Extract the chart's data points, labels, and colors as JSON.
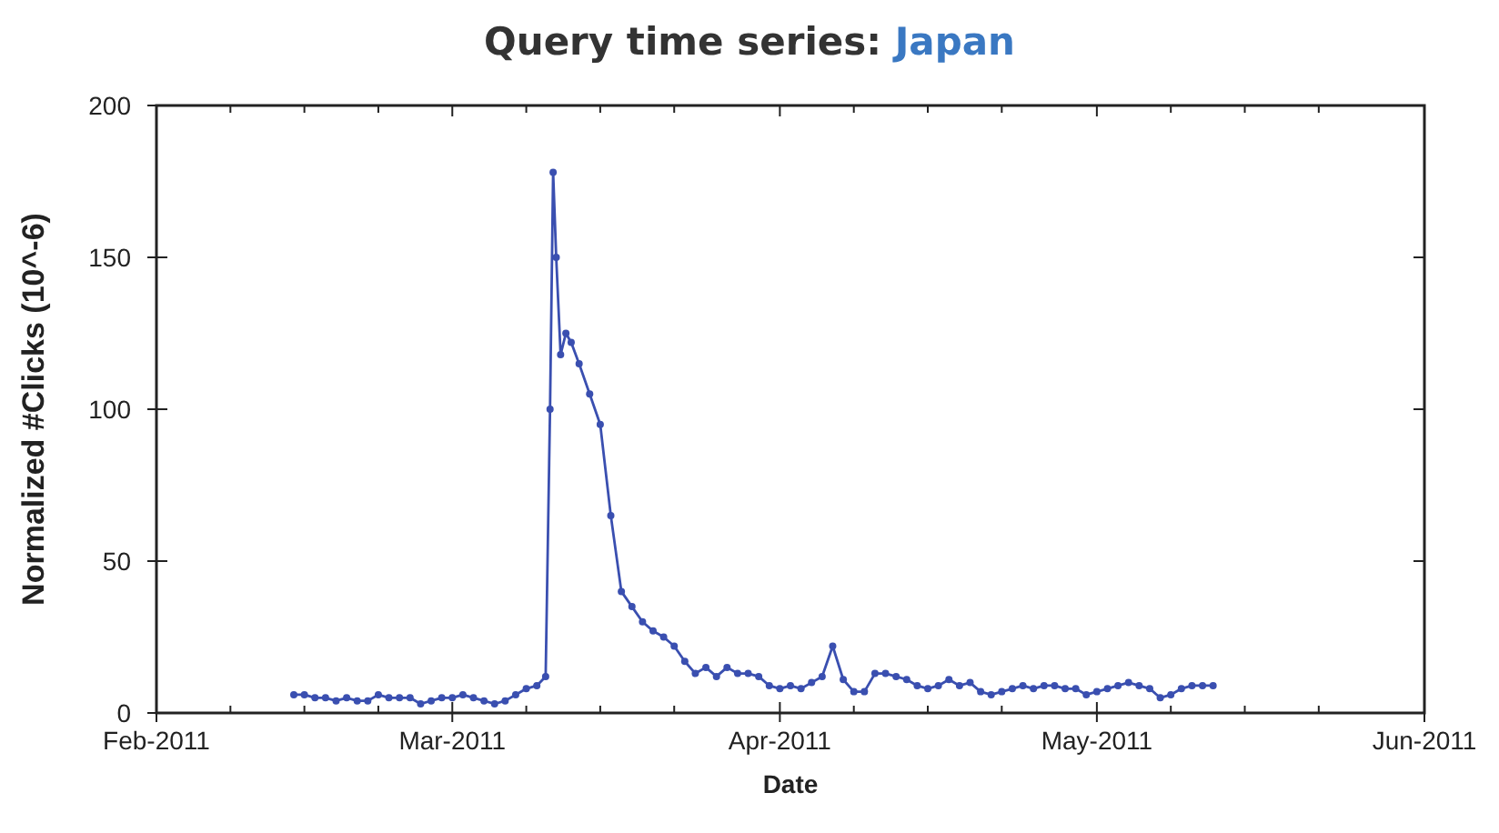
{
  "chart_data": {
    "type": "line",
    "title": "Query time series: Japan",
    "xlabel": "Date",
    "ylabel": "Normalized #Clicks (10^-6)",
    "x": [
      "2011-02-14",
      "2011-02-15",
      "2011-02-16",
      "2011-02-17",
      "2011-02-18",
      "2011-02-19",
      "2011-02-20",
      "2011-02-21",
      "2011-02-22",
      "2011-02-23",
      "2011-02-24",
      "2011-02-25",
      "2011-02-26",
      "2011-02-27",
      "2011-02-28",
      "2011-03-01",
      "2011-03-02",
      "2011-03-03",
      "2011-03-04",
      "2011-03-05",
      "2011-03-06",
      "2011-03-07",
      "2011-03-08",
      "2011-03-09",
      "2011-03-09T20:00",
      "2011-03-10T06:00",
      "2011-03-10T13:00",
      "2011-03-10T20:00",
      "2011-03-11T06:00",
      "2011-03-11T18:00",
      "2011-03-12T06:00",
      "2011-03-13",
      "2011-03-14",
      "2011-03-15",
      "2011-03-16",
      "2011-03-17",
      "2011-03-18",
      "2011-03-19",
      "2011-03-20",
      "2011-03-21",
      "2011-03-22",
      "2011-03-23",
      "2011-03-24",
      "2011-03-25",
      "2011-03-26",
      "2011-03-27",
      "2011-03-28",
      "2011-03-29",
      "2011-03-30",
      "2011-03-31",
      "2011-04-01",
      "2011-04-02",
      "2011-04-03",
      "2011-04-04",
      "2011-04-05",
      "2011-04-06",
      "2011-04-07",
      "2011-04-08",
      "2011-04-09",
      "2011-04-10",
      "2011-04-11",
      "2011-04-12",
      "2011-04-13",
      "2011-04-14",
      "2011-04-15",
      "2011-04-16",
      "2011-04-17",
      "2011-04-18",
      "2011-04-19",
      "2011-04-20",
      "2011-04-21",
      "2011-04-22",
      "2011-04-23",
      "2011-04-24",
      "2011-04-25",
      "2011-04-26",
      "2011-04-27",
      "2011-04-28",
      "2011-04-29",
      "2011-04-30",
      "2011-05-01",
      "2011-05-02",
      "2011-05-03",
      "2011-05-04",
      "2011-05-05",
      "2011-05-06",
      "2011-05-07",
      "2011-05-08",
      "2011-05-09",
      "2011-05-10",
      "2011-05-11",
      "2011-05-12"
    ],
    "series": [
      {
        "color": "#3a4fb0",
        "values": [
          6,
          6,
          5,
          5,
          4,
          5,
          4,
          4,
          6,
          5,
          5,
          5,
          3,
          4,
          5,
          5,
          6,
          5,
          4,
          3,
          4,
          6,
          8,
          9,
          12,
          100,
          178,
          150,
          118,
          125,
          122,
          115,
          105,
          95,
          65,
          40,
          35,
          30,
          27,
          25,
          22,
          17,
          13,
          15,
          12,
          15,
          13,
          13,
          12,
          9,
          8,
          9,
          8,
          10,
          12,
          22,
          11,
          7,
          7,
          13,
          13,
          12,
          11,
          9,
          8,
          9,
          11,
          9,
          10,
          7,
          6,
          7,
          8,
          9,
          8,
          9,
          9,
          8,
          8,
          6,
          7,
          8,
          9,
          10,
          9,
          8,
          5,
          6,
          8,
          9,
          9,
          9
        ]
      }
    ],
    "xlim": [
      "2011-02-01",
      "2011-06-01"
    ],
    "xticks": [
      {
        "value": "2011-02-01",
        "label": "Feb-2011"
      },
      {
        "value": "2011-02-08",
        "label": null
      },
      {
        "value": "2011-02-15",
        "label": null
      },
      {
        "value": "2011-02-22",
        "label": null
      },
      {
        "value": "2011-03-01",
        "label": "Mar-2011"
      },
      {
        "value": "2011-03-08",
        "label": null
      },
      {
        "value": "2011-03-15",
        "label": null
      },
      {
        "value": "2011-03-22",
        "label": null
      },
      {
        "value": "2011-04-01",
        "label": "Apr-2011"
      },
      {
        "value": "2011-04-08",
        "label": null
      },
      {
        "value": "2011-04-15",
        "label": null
      },
      {
        "value": "2011-04-22",
        "label": null
      },
      {
        "value": "2011-05-01",
        "label": "May-2011"
      },
      {
        "value": "2011-05-08",
        "label": null
      },
      {
        "value": "2011-05-15",
        "label": null
      },
      {
        "value": "2011-05-22",
        "label": null
      },
      {
        "value": "2011-06-01",
        "label": "Jun-2011"
      }
    ],
    "ylim": [
      0,
      200
    ],
    "yticks": [
      0,
      50,
      100,
      150,
      200
    ],
    "grid": false,
    "marker": "circle",
    "line_style": "solid"
  }
}
